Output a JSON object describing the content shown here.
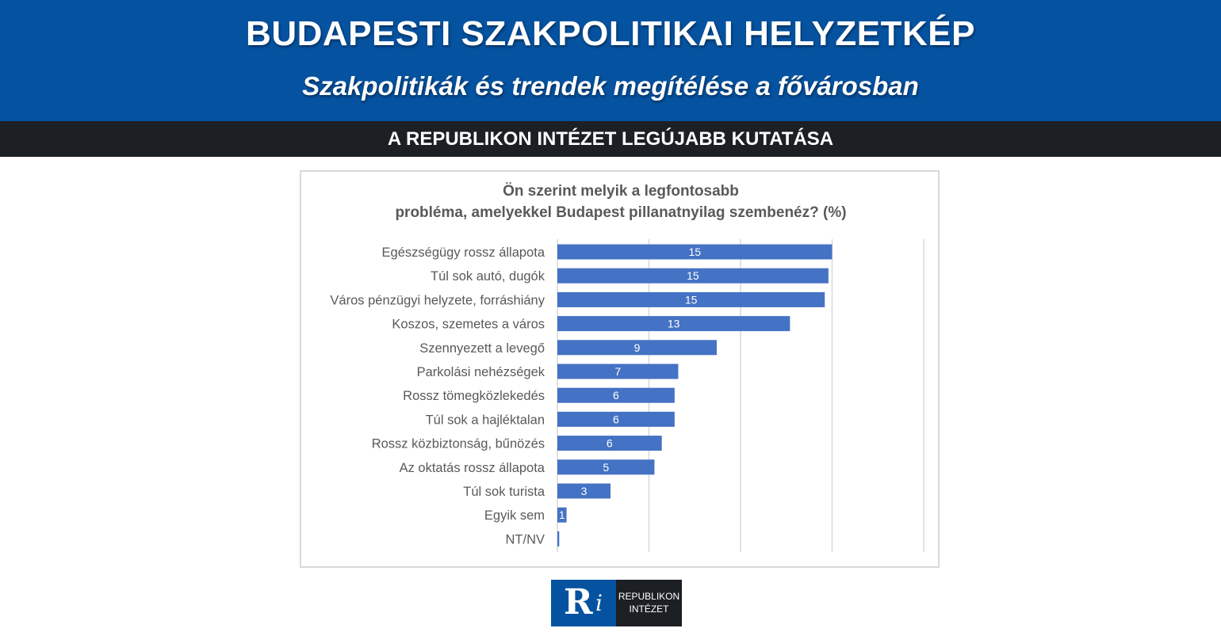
{
  "header": {
    "title": "BUDAPESTI SZAKPOLITIKAI HELYZETKÉP",
    "subtitle": "Szakpolitikák és trendek megítélése a fővárosban"
  },
  "strip": {
    "text": "A REPUBLIKON INTÉZET LEGÚJABB KUTATÁSA"
  },
  "logo": {
    "mark_r": "R",
    "mark_i": "i",
    "line1": "REPUBLIKON",
    "line2": "INTÉZET"
  },
  "colors": {
    "brand_blue": "#0552a0",
    "dark": "#1c1f24",
    "bar": "#4472c4",
    "grid": "#d9d9d9"
  },
  "chart_data": {
    "type": "bar",
    "orientation": "horizontal",
    "title_lines": [
      "Ön szerint melyik a legfontosabb",
      "probléma, amelyekkel Budapest pillanatnyilag szembenéz? (%)"
    ],
    "categories": [
      "Egészségügy rossz állapota",
      "Túl sok autó, dugók",
      "Város pénzügyi helyzete, forráshiány",
      "Koszos, szemetes a város",
      "Szennyezett a levegő",
      "Parkolási nehézségek",
      "Rossz tömegközlekedés",
      "Túl sok a hajléktalan",
      "Rossz közbiztonság, bűnözés",
      "Az oktatás rossz állapota",
      "Túl sok turista",
      "Egyik sem",
      "NT/NV"
    ],
    "values": [
      15.0,
      14.8,
      14.6,
      12.7,
      8.7,
      6.6,
      6.4,
      6.4,
      5.7,
      5.3,
      2.9,
      0.5,
      0.1
    ],
    "data_labels": [
      "15",
      "15",
      "15",
      "13",
      "9",
      "7",
      "6",
      "6",
      "6",
      "5",
      "3",
      "1",
      ""
    ],
    "xlim": [
      0,
      20
    ],
    "x_gridlines": [
      0,
      5,
      10,
      15,
      20
    ],
    "grid": true,
    "legend": "none"
  }
}
